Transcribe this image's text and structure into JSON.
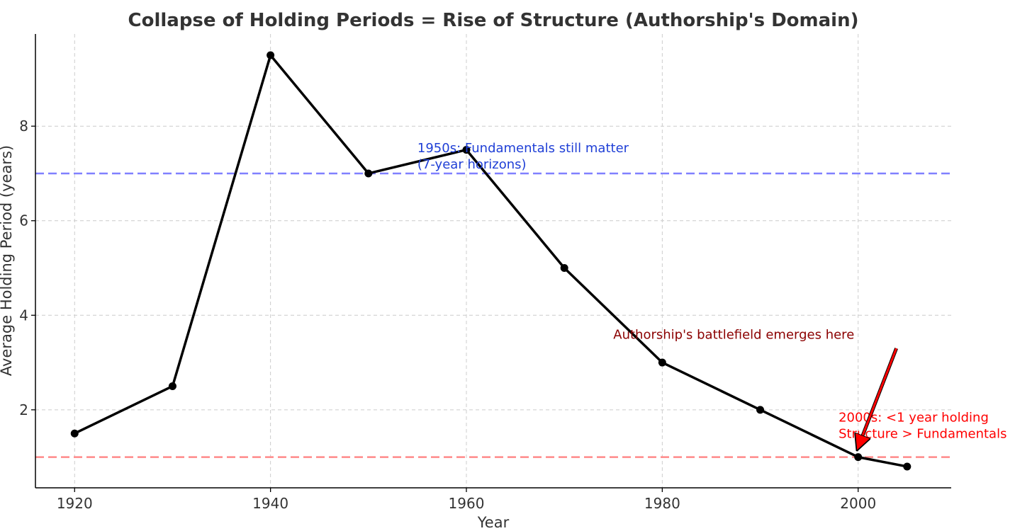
{
  "chart_data": {
    "type": "line",
    "title": "Collapse of Holding Periods = Rise of Structure (Authorship's Domain)",
    "xlabel": "Year",
    "ylabel": "Average Holding Period (years)",
    "xlim": [
      1916,
      2009.5
    ],
    "ylim": [
      0.35,
      9.95
    ],
    "xticks": [
      1920,
      1940,
      1960,
      1980,
      2000
    ],
    "yticks": [
      2,
      4,
      6,
      8
    ],
    "grid": true,
    "series": [
      {
        "name": "Average Holding Period",
        "color": "#000000",
        "x": [
          1920,
          1930,
          1940,
          1950,
          1960,
          1970,
          1980,
          1990,
          2000,
          2005
        ],
        "y": [
          1.5,
          2.5,
          9.5,
          7.0,
          7.5,
          5.0,
          3.0,
          2.0,
          1.0,
          0.8
        ]
      }
    ],
    "reference_lines": [
      {
        "y": 7,
        "color": "#8080ff"
      },
      {
        "y": 1,
        "color": "#ff8a8a"
      }
    ],
    "annotations": [
      {
        "id": "fundamentals",
        "lines": [
          "1950s: Fundamentals still matter",
          "(7-year horizons)"
        ],
        "x": 1955,
        "y": 7.45,
        "color": "#1f3fd6"
      },
      {
        "id": "structure",
        "lines": [
          "2000s: <1 year holding",
          "Structure > Fundamentals"
        ],
        "x": 1998,
        "y": 1.75,
        "color": "#ff0000"
      },
      {
        "id": "battlefield",
        "lines": [
          "Authorship's battlefield emerges here"
        ],
        "x": 1975,
        "y": 3.5,
        "color": "#8b0000",
        "arrow_from": {
          "x": 2003.9,
          "y": 3.3
        },
        "arrow_to": {
          "x": 2000,
          "y": 1.0
        }
      }
    ]
  }
}
